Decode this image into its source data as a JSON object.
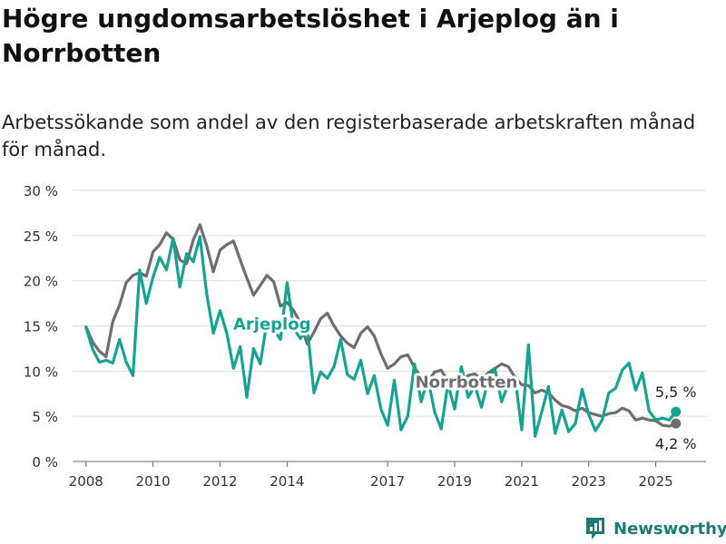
{
  "header": {
    "title": "Högre ungdomsarbetslöshet i Arjeplog än i Norrbotten",
    "subtitle": "Arbetssökande som andel av den registerbaserade arbetskraften månad för månad."
  },
  "brand": {
    "name": "Newsworthy",
    "icon": "bar-chart-logo-icon",
    "color": "#1e7a74"
  },
  "chart_data": {
    "type": "line",
    "title": "Högre ungdomsarbetslöshet i Arjeplog än i Norrbotten",
    "subtitle": "Arbetssökande som andel av den registerbaserade arbetskraften månad för månad.",
    "xlabel": "",
    "ylabel": "",
    "xlim": [
      2007.6,
      2026.5
    ],
    "ylim": [
      0,
      30
    ],
    "grid": true,
    "legend": "inline",
    "y_ticks": [
      0,
      5,
      10,
      15,
      20,
      25,
      30
    ],
    "y_tick_labels": [
      "0 %",
      "5 %",
      "10 %",
      "15 %",
      "20 %",
      "25 %",
      "30 %"
    ],
    "x_ticks": [
      2008,
      2010,
      2012,
      2014,
      2017,
      2019,
      2021,
      2023,
      2025
    ],
    "x_tick_labels": [
      "2008",
      "2010",
      "2012",
      "2014",
      "2017",
      "2019",
      "2021",
      "2023",
      "2025"
    ],
    "series": [
      {
        "name": "Norrbotten",
        "color": "#6d6d72",
        "end_label": "4,2 %",
        "end_value": 4.2,
        "points": [
          [
            2008.0,
            14.9
          ],
          [
            2008.2,
            13.2
          ],
          [
            2008.4,
            12.2
          ],
          [
            2008.6,
            11.6
          ],
          [
            2008.8,
            15.5
          ],
          [
            2009.0,
            17.3
          ],
          [
            2009.2,
            19.8
          ],
          [
            2009.4,
            20.6
          ],
          [
            2009.6,
            20.9
          ],
          [
            2009.8,
            20.5
          ],
          [
            2010.0,
            23.2
          ],
          [
            2010.2,
            24.0
          ],
          [
            2010.4,
            25.3
          ],
          [
            2010.6,
            24.6
          ],
          [
            2010.8,
            22.3
          ],
          [
            2011.0,
            21.9
          ],
          [
            2011.2,
            24.5
          ],
          [
            2011.4,
            26.2
          ],
          [
            2011.6,
            23.9
          ],
          [
            2011.8,
            21.0
          ],
          [
            2012.0,
            23.4
          ],
          [
            2012.2,
            24.0
          ],
          [
            2012.4,
            24.4
          ],
          [
            2012.6,
            22.3
          ],
          [
            2012.8,
            20.3
          ],
          [
            2013.0,
            18.4
          ],
          [
            2013.2,
            19.5
          ],
          [
            2013.4,
            20.6
          ],
          [
            2013.6,
            19.9
          ],
          [
            2013.8,
            17.2
          ],
          [
            2014.0,
            17.6
          ],
          [
            2014.2,
            16.7
          ],
          [
            2014.4,
            15.3
          ],
          [
            2014.6,
            13.0
          ],
          [
            2014.8,
            14.3
          ],
          [
            2015.0,
            15.8
          ],
          [
            2015.2,
            16.4
          ],
          [
            2015.4,
            15.0
          ],
          [
            2015.6,
            13.9
          ],
          [
            2015.8,
            13.1
          ],
          [
            2016.0,
            12.6
          ],
          [
            2016.2,
            14.2
          ],
          [
            2016.4,
            14.9
          ],
          [
            2016.6,
            13.9
          ],
          [
            2016.8,
            11.9
          ],
          [
            2017.0,
            10.3
          ],
          [
            2017.2,
            10.8
          ],
          [
            2017.4,
            11.6
          ],
          [
            2017.6,
            11.8
          ],
          [
            2017.8,
            10.4
          ],
          [
            2018.0,
            9.3
          ],
          [
            2018.2,
            8.8
          ],
          [
            2018.4,
            9.9
          ],
          [
            2018.6,
            10.1
          ],
          [
            2018.8,
            8.9
          ],
          [
            2019.0,
            8.5
          ],
          [
            2019.2,
            8.9
          ],
          [
            2019.4,
            9.5
          ],
          [
            2019.6,
            9.7
          ],
          [
            2019.8,
            9.1
          ],
          [
            2020.0,
            9.8
          ],
          [
            2020.2,
            10.3
          ],
          [
            2020.4,
            10.8
          ],
          [
            2020.6,
            10.5
          ],
          [
            2020.8,
            9.3
          ],
          [
            2021.0,
            8.5
          ],
          [
            2021.2,
            8.4
          ],
          [
            2021.4,
            7.6
          ],
          [
            2021.6,
            7.9
          ],
          [
            2021.8,
            7.6
          ],
          [
            2022.0,
            6.8
          ],
          [
            2022.2,
            6.2
          ],
          [
            2022.4,
            6.0
          ],
          [
            2022.6,
            5.6
          ],
          [
            2022.8,
            5.9
          ],
          [
            2023.0,
            5.4
          ],
          [
            2023.2,
            5.2
          ],
          [
            2023.4,
            5.0
          ],
          [
            2023.6,
            5.3
          ],
          [
            2023.8,
            5.4
          ],
          [
            2024.0,
            5.9
          ],
          [
            2024.2,
            5.6
          ],
          [
            2024.4,
            4.6
          ],
          [
            2024.6,
            4.8
          ],
          [
            2024.8,
            4.6
          ],
          [
            2025.0,
            4.5
          ],
          [
            2025.2,
            4.0
          ],
          [
            2025.4,
            3.9
          ],
          [
            2025.6,
            4.2
          ]
        ]
      },
      {
        "name": "Arjeplog",
        "color": "#16a394",
        "end_label": "5,5 %",
        "end_value": 5.5,
        "points": [
          [
            2008.0,
            14.8
          ],
          [
            2008.2,
            12.4
          ],
          [
            2008.4,
            11.0
          ],
          [
            2008.6,
            11.2
          ],
          [
            2008.8,
            10.9
          ],
          [
            2009.0,
            13.5
          ],
          [
            2009.2,
            11.0
          ],
          [
            2009.4,
            9.5
          ],
          [
            2009.6,
            21.2
          ],
          [
            2009.8,
            17.5
          ],
          [
            2010.0,
            20.4
          ],
          [
            2010.2,
            22.6
          ],
          [
            2010.4,
            21.2
          ],
          [
            2010.6,
            24.7
          ],
          [
            2010.8,
            19.3
          ],
          [
            2011.0,
            23.0
          ],
          [
            2011.2,
            22.1
          ],
          [
            2011.4,
            24.9
          ],
          [
            2011.6,
            18.6
          ],
          [
            2011.8,
            14.2
          ],
          [
            2012.0,
            16.7
          ],
          [
            2012.2,
            14.2
          ],
          [
            2012.4,
            10.3
          ],
          [
            2012.6,
            12.7
          ],
          [
            2012.8,
            7.1
          ],
          [
            2013.0,
            12.5
          ],
          [
            2013.2,
            10.8
          ],
          [
            2013.4,
            15.5
          ],
          [
            2013.6,
            14.6
          ],
          [
            2013.8,
            13.5
          ],
          [
            2014.0,
            19.8
          ],
          [
            2014.2,
            14.7
          ],
          [
            2014.4,
            13.6
          ],
          [
            2014.6,
            14.9
          ],
          [
            2014.8,
            7.6
          ],
          [
            2015.0,
            9.9
          ],
          [
            2015.2,
            9.2
          ],
          [
            2015.4,
            10.5
          ],
          [
            2015.6,
            13.5
          ],
          [
            2015.8,
            9.6
          ],
          [
            2016.0,
            9.1
          ],
          [
            2016.2,
            11.2
          ],
          [
            2016.4,
            7.5
          ],
          [
            2016.6,
            9.5
          ],
          [
            2016.8,
            5.8
          ],
          [
            2017.0,
            4.0
          ],
          [
            2017.2,
            9.0
          ],
          [
            2017.4,
            3.5
          ],
          [
            2017.6,
            5.0
          ],
          [
            2017.8,
            10.8
          ],
          [
            2018.0,
            6.6
          ],
          [
            2018.2,
            9.2
          ],
          [
            2018.4,
            5.5
          ],
          [
            2018.6,
            3.6
          ],
          [
            2018.8,
            8.6
          ],
          [
            2019.0,
            5.8
          ],
          [
            2019.2,
            10.5
          ],
          [
            2019.4,
            7.1
          ],
          [
            2019.6,
            8.4
          ],
          [
            2019.8,
            6.0
          ],
          [
            2020.0,
            9.0
          ],
          [
            2020.2,
            10.3
          ],
          [
            2020.4,
            6.6
          ],
          [
            2020.6,
            8.6
          ],
          [
            2020.8,
            9.4
          ],
          [
            2021.0,
            3.5
          ],
          [
            2021.2,
            12.9
          ],
          [
            2021.4,
            2.8
          ],
          [
            2021.6,
            5.5
          ],
          [
            2021.8,
            8.3
          ],
          [
            2022.0,
            3.1
          ],
          [
            2022.2,
            5.7
          ],
          [
            2022.4,
            3.3
          ],
          [
            2022.6,
            4.2
          ],
          [
            2022.8,
            8.0
          ],
          [
            2023.0,
            5.2
          ],
          [
            2023.2,
            3.4
          ],
          [
            2023.4,
            4.6
          ],
          [
            2023.6,
            7.6
          ],
          [
            2023.8,
            8.1
          ],
          [
            2024.0,
            10.1
          ],
          [
            2024.2,
            10.9
          ],
          [
            2024.4,
            7.9
          ],
          [
            2024.6,
            9.8
          ],
          [
            2024.8,
            5.6
          ],
          [
            2025.0,
            4.6
          ],
          [
            2025.2,
            4.8
          ],
          [
            2025.4,
            4.6
          ],
          [
            2025.6,
            5.5
          ]
        ]
      }
    ]
  }
}
